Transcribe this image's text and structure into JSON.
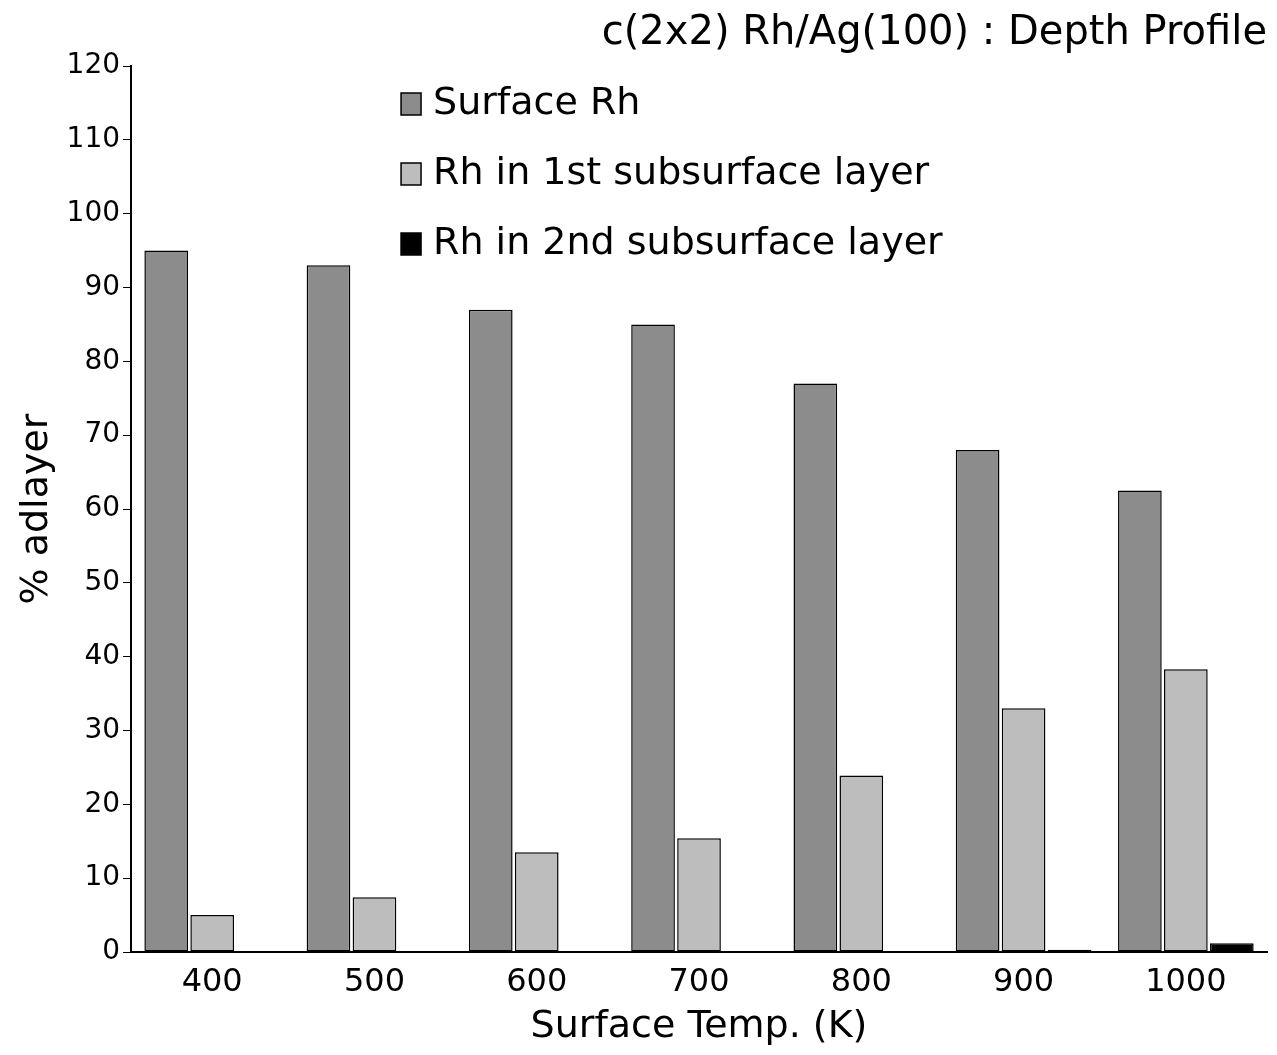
{
  "chart_data": {
    "type": "bar",
    "title": "c(2x2) Rh/Ag(100) : Depth Profile",
    "xlabel": "Surface Temp. (K)",
    "ylabel": "% adlayer",
    "categories": [
      "400",
      "500",
      "600",
      "700",
      "800",
      "900",
      "1000"
    ],
    "series": [
      {
        "name": "Surface Rh",
        "color": "#8c8c8c",
        "values": [
          95,
          93,
          87,
          85,
          77,
          68,
          62.5
        ]
      },
      {
        "name": "Rh in 1st subsurface layer",
        "color": "#bdbdbd",
        "values": [
          5,
          7.4,
          13.5,
          15.4,
          23.9,
          33,
          38.3
        ]
      },
      {
        "name": "Rh in 2nd subsurface layer",
        "color": "#000000",
        "values": [
          0,
          0,
          0,
          0,
          0.1,
          0.3,
          1.2
        ]
      }
    ],
    "ylim": [
      0,
      120
    ],
    "yticks": [
      0,
      10,
      20,
      30,
      40,
      50,
      60,
      70,
      80,
      90,
      100,
      110,
      120
    ],
    "grid": false,
    "legend": "top"
  }
}
